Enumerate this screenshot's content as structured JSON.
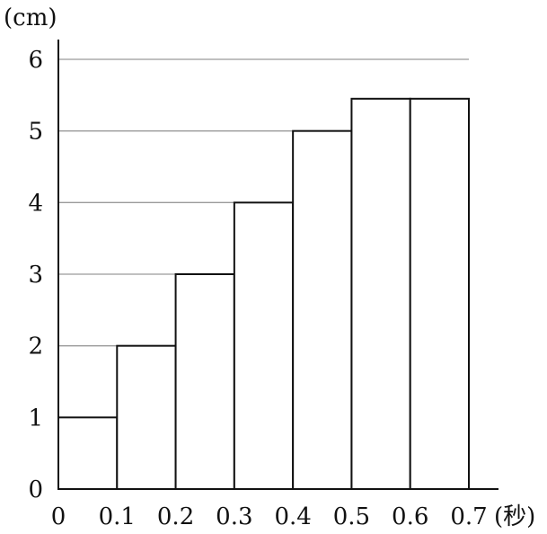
{
  "chart_data": {
    "type": "bar",
    "y_unit_label": "(cm)",
    "x_unit_label": "(秒)",
    "x_ticks": [
      "0",
      "0.1",
      "0.2",
      "0.3",
      "0.4",
      "0.5",
      "0.6",
      "0.7"
    ],
    "y_ticks": [
      "0",
      "1",
      "2",
      "3",
      "4",
      "5",
      "6"
    ],
    "ylim": [
      0,
      6
    ],
    "xlim": [
      0,
      0.7
    ],
    "bins": [
      {
        "from": 0.0,
        "to": 0.1,
        "value": 1
      },
      {
        "from": 0.1,
        "to": 0.2,
        "value": 2
      },
      {
        "from": 0.2,
        "to": 0.3,
        "value": 3
      },
      {
        "from": 0.3,
        "to": 0.4,
        "value": 4
      },
      {
        "from": 0.4,
        "to": 0.5,
        "value": 5
      },
      {
        "from": 0.5,
        "to": 0.6,
        "value": 5.45
      },
      {
        "from": 0.6,
        "to": 0.7,
        "value": 5.45
      }
    ],
    "grid": true,
    "bar_fill": "#ffffff",
    "bar_stroke": "#111111",
    "grid_color": "#9a9a9a",
    "axis_color": "#111111"
  }
}
